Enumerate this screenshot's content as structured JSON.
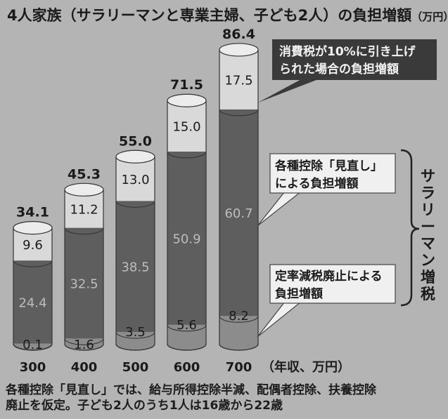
{
  "chart_data": {
    "type": "bar",
    "stacked": true,
    "title": "4人家族（サラリーマンと専業主婦、子ども2人）の負担増額",
    "unit_label": "（万円）",
    "xlabel": "（年収、万円）",
    "categories": [
      "300",
      "400",
      "500",
      "600",
      "700"
    ],
    "series": [
      {
        "name": "定率減税廃止による負担増額",
        "values": [
          0.1,
          1.6,
          3.5,
          5.6,
          8.2
        ]
      },
      {
        "name": "各種控除「見直し」による負担増額",
        "values": [
          24.4,
          32.5,
          38.5,
          50.9,
          60.7
        ]
      },
      {
        "name": "消費税が10%に引き上げられた場合の負担増額",
        "values": [
          9.6,
          11.2,
          13.0,
          15.0,
          17.5
        ]
      }
    ],
    "totals": [
      34.1,
      45.3,
      55.0,
      71.5,
      86.4
    ],
    "total_labels": [
      "34.1",
      "45.3",
      "55.0",
      "71.5",
      "86.4"
    ],
    "value_labels": [
      [
        "0.1",
        "1.6",
        "3.5",
        "5.6",
        "8.2"
      ],
      [
        "24.4",
        "32.5",
        "38.5",
        "50.9",
        "60.7"
      ],
      [
        "9.6",
        "11.2",
        "13.0",
        "15.0",
        "17.5"
      ]
    ],
    "brace_label": "サラリーマン増税",
    "ylim": [
      0,
      90
    ],
    "colors": {
      "consumption_tax": "#d9d9d9",
      "deduction_review": "#5e5e5e",
      "flat_rate_abolition": "#8c8c8c",
      "callout_dark": "#3a3a3a",
      "callout_light": "#e6e6e6"
    }
  },
  "footnote": {
    "line1": "各種控除「見直し」では、給与所得控除半減、配偶者控除、扶養控除",
    "line2": "廃止を仮定。子ども2人のうち1人は16歳から22歳"
  }
}
